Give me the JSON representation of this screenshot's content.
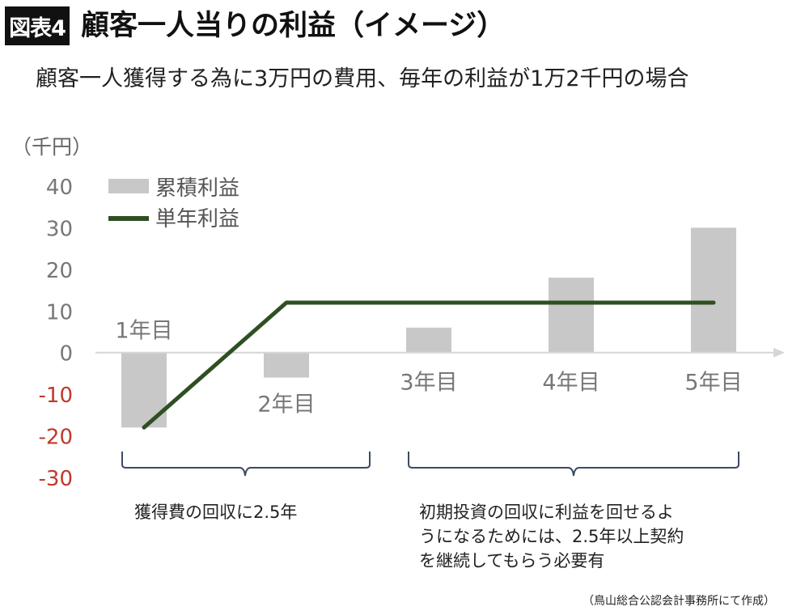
{
  "header": {
    "figure_label": "図表4",
    "title": "顧客一人当りの利益（イメージ）",
    "subtitle": "顧客一人獲得する為に3万円の費用、毎年の利益が1万2千円の場合"
  },
  "chart_data": {
    "type": "bar",
    "unit_label": "（千円）",
    "categories": [
      "1年目",
      "2年目",
      "3年目",
      "4年目",
      "5年目"
    ],
    "series": [
      {
        "name": "累積利益",
        "kind": "bar",
        "color": "#c8c8c8",
        "values": [
          -18,
          -6,
          6,
          18,
          30
        ]
      },
      {
        "name": "単年利益",
        "kind": "line",
        "color": "#2f4f23",
        "values": [
          -18,
          12,
          12,
          12,
          12
        ]
      }
    ],
    "ylim": [
      -30,
      40
    ],
    "yticks": [
      40,
      30,
      20,
      10,
      0,
      -10,
      -20,
      -30
    ],
    "negative_tick_color": "#c0392b",
    "legend_position": "top-left"
  },
  "notes": {
    "left": [
      "獲得費の回収に2.5年"
    ],
    "right": [
      "初期投資の回収に利益を回せるよ",
      "うになるためには、2.5年以上契約",
      "を継続してもらう必要有"
    ]
  },
  "source": "（鳥山総合公認会計事務所にて作成）"
}
